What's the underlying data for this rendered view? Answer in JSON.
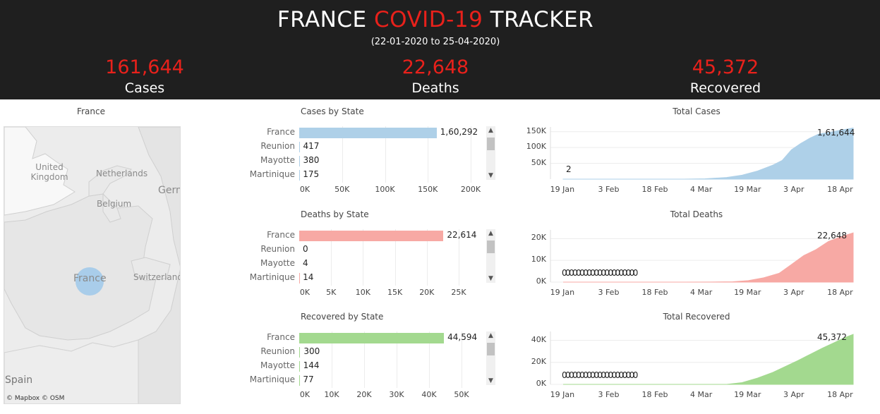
{
  "header": {
    "title_part1": "FRANCE ",
    "title_accent": "COVID-19",
    "title_part2": " TRACKER",
    "subtitle": "(22-01-2020 to 25-04-2020)",
    "kpis": [
      {
        "value": "161,644",
        "label": "Cases"
      },
      {
        "value": "22,648",
        "label": "Deaths"
      },
      {
        "value": "45,372",
        "label": "Recovered"
      }
    ]
  },
  "colors": {
    "accent": "#e8211b",
    "header_bg": "#1f1f1f",
    "cases": "#aed0e8",
    "deaths": "#f7a9a4",
    "recovered": "#a3d98f"
  },
  "map": {
    "title": "France",
    "labels": [
      "United Kingdom",
      "Netherlands",
      "Belgium",
      "Germ",
      "France",
      "Switzerland",
      "Spain"
    ],
    "credit": "© Mapbox © OSM"
  },
  "chart_data": [
    {
      "type": "bar",
      "title": "Cases by State",
      "categories": [
        "France",
        "Reunion",
        "Mayotte",
        "Martinique"
      ],
      "values": [
        160292,
        417,
        380,
        175
      ],
      "value_labels": [
        "1,60,292",
        "417",
        "380",
        "175"
      ],
      "xlim": [
        0,
        200000
      ],
      "ticks": [
        0,
        50000,
        100000,
        150000,
        200000
      ],
      "tick_labels": [
        "0K",
        "50K",
        "100K",
        "150K",
        "200K"
      ],
      "color": "#aed0e8"
    },
    {
      "type": "bar",
      "title": "Deaths by State",
      "categories": [
        "France",
        "Reunion",
        "Mayotte",
        "Martinique"
      ],
      "values": [
        22614,
        0,
        4,
        14
      ],
      "value_labels": [
        "22,614",
        "0",
        "4",
        "14"
      ],
      "xlim": [
        0,
        25000
      ],
      "ticks": [
        0,
        5000,
        10000,
        15000,
        20000,
        25000
      ],
      "tick_labels": [
        "0K",
        "5K",
        "10K",
        "15K",
        "20K",
        "25K"
      ],
      "color": "#f7a9a4"
    },
    {
      "type": "bar",
      "title": "Recovered by State",
      "categories": [
        "France",
        "Reunion",
        "Mayotte",
        "Martinique"
      ],
      "values": [
        44594,
        300,
        144,
        77
      ],
      "value_labels": [
        "44,594",
        "300",
        "144",
        "77"
      ],
      "xlim": [
        0,
        50000
      ],
      "ticks": [
        0,
        10000,
        20000,
        30000,
        40000,
        50000
      ],
      "tick_labels": [
        "0K",
        "10K",
        "20K",
        "30K",
        "40K",
        "50K"
      ],
      "color": "#a3d98f"
    },
    {
      "type": "area",
      "title": "Total Cases",
      "x_range": [
        "2020-01-22",
        "2020-04-25"
      ],
      "x_ticks": [
        "19 Jan",
        "3 Feb",
        "18 Feb",
        "4 Mar",
        "19 Mar",
        "3 Apr",
        "18 Apr"
      ],
      "y_ticks": [
        50000,
        100000,
        150000
      ],
      "y_tick_labels": [
        "50K",
        "100K",
        "150K"
      ],
      "ylim": [
        0,
        165000
      ],
      "x": [
        "2020-01-22",
        "2020-02-15",
        "2020-03-01",
        "2020-03-08",
        "2020-03-15",
        "2020-03-20",
        "2020-03-25",
        "2020-03-30",
        "2020-04-02",
        "2020-04-05",
        "2020-04-08",
        "2020-04-11",
        "2020-04-14",
        "2020-04-17",
        "2020-04-20",
        "2020-04-25"
      ],
      "y": [
        2,
        12,
        130,
        1100,
        5400,
        12600,
        25600,
        44500,
        59100,
        92800,
        112900,
        129600,
        143300,
        147100,
        152900,
        161644
      ],
      "start_label": "2",
      "end_label": "1,61,644",
      "color": "#aed0e8"
    },
    {
      "type": "area",
      "title": "Total Deaths",
      "x_range": [
        "2020-01-22",
        "2020-04-25"
      ],
      "x_ticks": [
        "19 Jan",
        "3 Feb",
        "18 Feb",
        "4 Mar",
        "19 Mar",
        "3 Apr",
        "18 Apr"
      ],
      "y_ticks": [
        0,
        10000,
        20000
      ],
      "y_tick_labels": [
        "0K",
        "10K",
        "20K"
      ],
      "ylim": [
        0,
        24000
      ],
      "x": [
        "2020-01-22",
        "2020-03-01",
        "2020-03-10",
        "2020-03-17",
        "2020-03-22",
        "2020-03-27",
        "2020-04-01",
        "2020-04-05",
        "2020-04-09",
        "2020-04-13",
        "2020-04-17",
        "2020-04-21",
        "2020-04-25"
      ],
      "y": [
        0,
        2,
        33,
        175,
        674,
        1995,
        4043,
        8093,
        12228,
        14986,
        18703,
        20829,
        22648
      ],
      "start_marks": "000000000000000000000",
      "end_label": "22,648",
      "color": "#f7a9a4"
    },
    {
      "type": "area",
      "title": "Total Recovered",
      "x_range": [
        "2020-01-22",
        "2020-04-25"
      ],
      "x_ticks": [
        "19 Jan",
        "3 Feb",
        "18 Feb",
        "4 Mar",
        "19 Mar",
        "3 Apr",
        "18 Apr"
      ],
      "y_ticks": [
        0,
        20000,
        40000
      ],
      "y_tick_labels": [
        "0K",
        "20K",
        "40K"
      ],
      "ylim": [
        0,
        48000
      ],
      "x": [
        "2020-01-22",
        "2020-03-15",
        "2020-03-20",
        "2020-03-25",
        "2020-03-30",
        "2020-04-03",
        "2020-04-07",
        "2020-04-11",
        "2020-04-15",
        "2020-04-19",
        "2020-04-22",
        "2020-04-25"
      ],
      "y": [
        0,
        12,
        1587,
        5700,
        10935,
        16183,
        21452,
        27186,
        32812,
        38036,
        42088,
        45372
      ],
      "start_marks": "000000000000000000000",
      "end_label": "45,372",
      "color": "#a3d98f"
    }
  ]
}
